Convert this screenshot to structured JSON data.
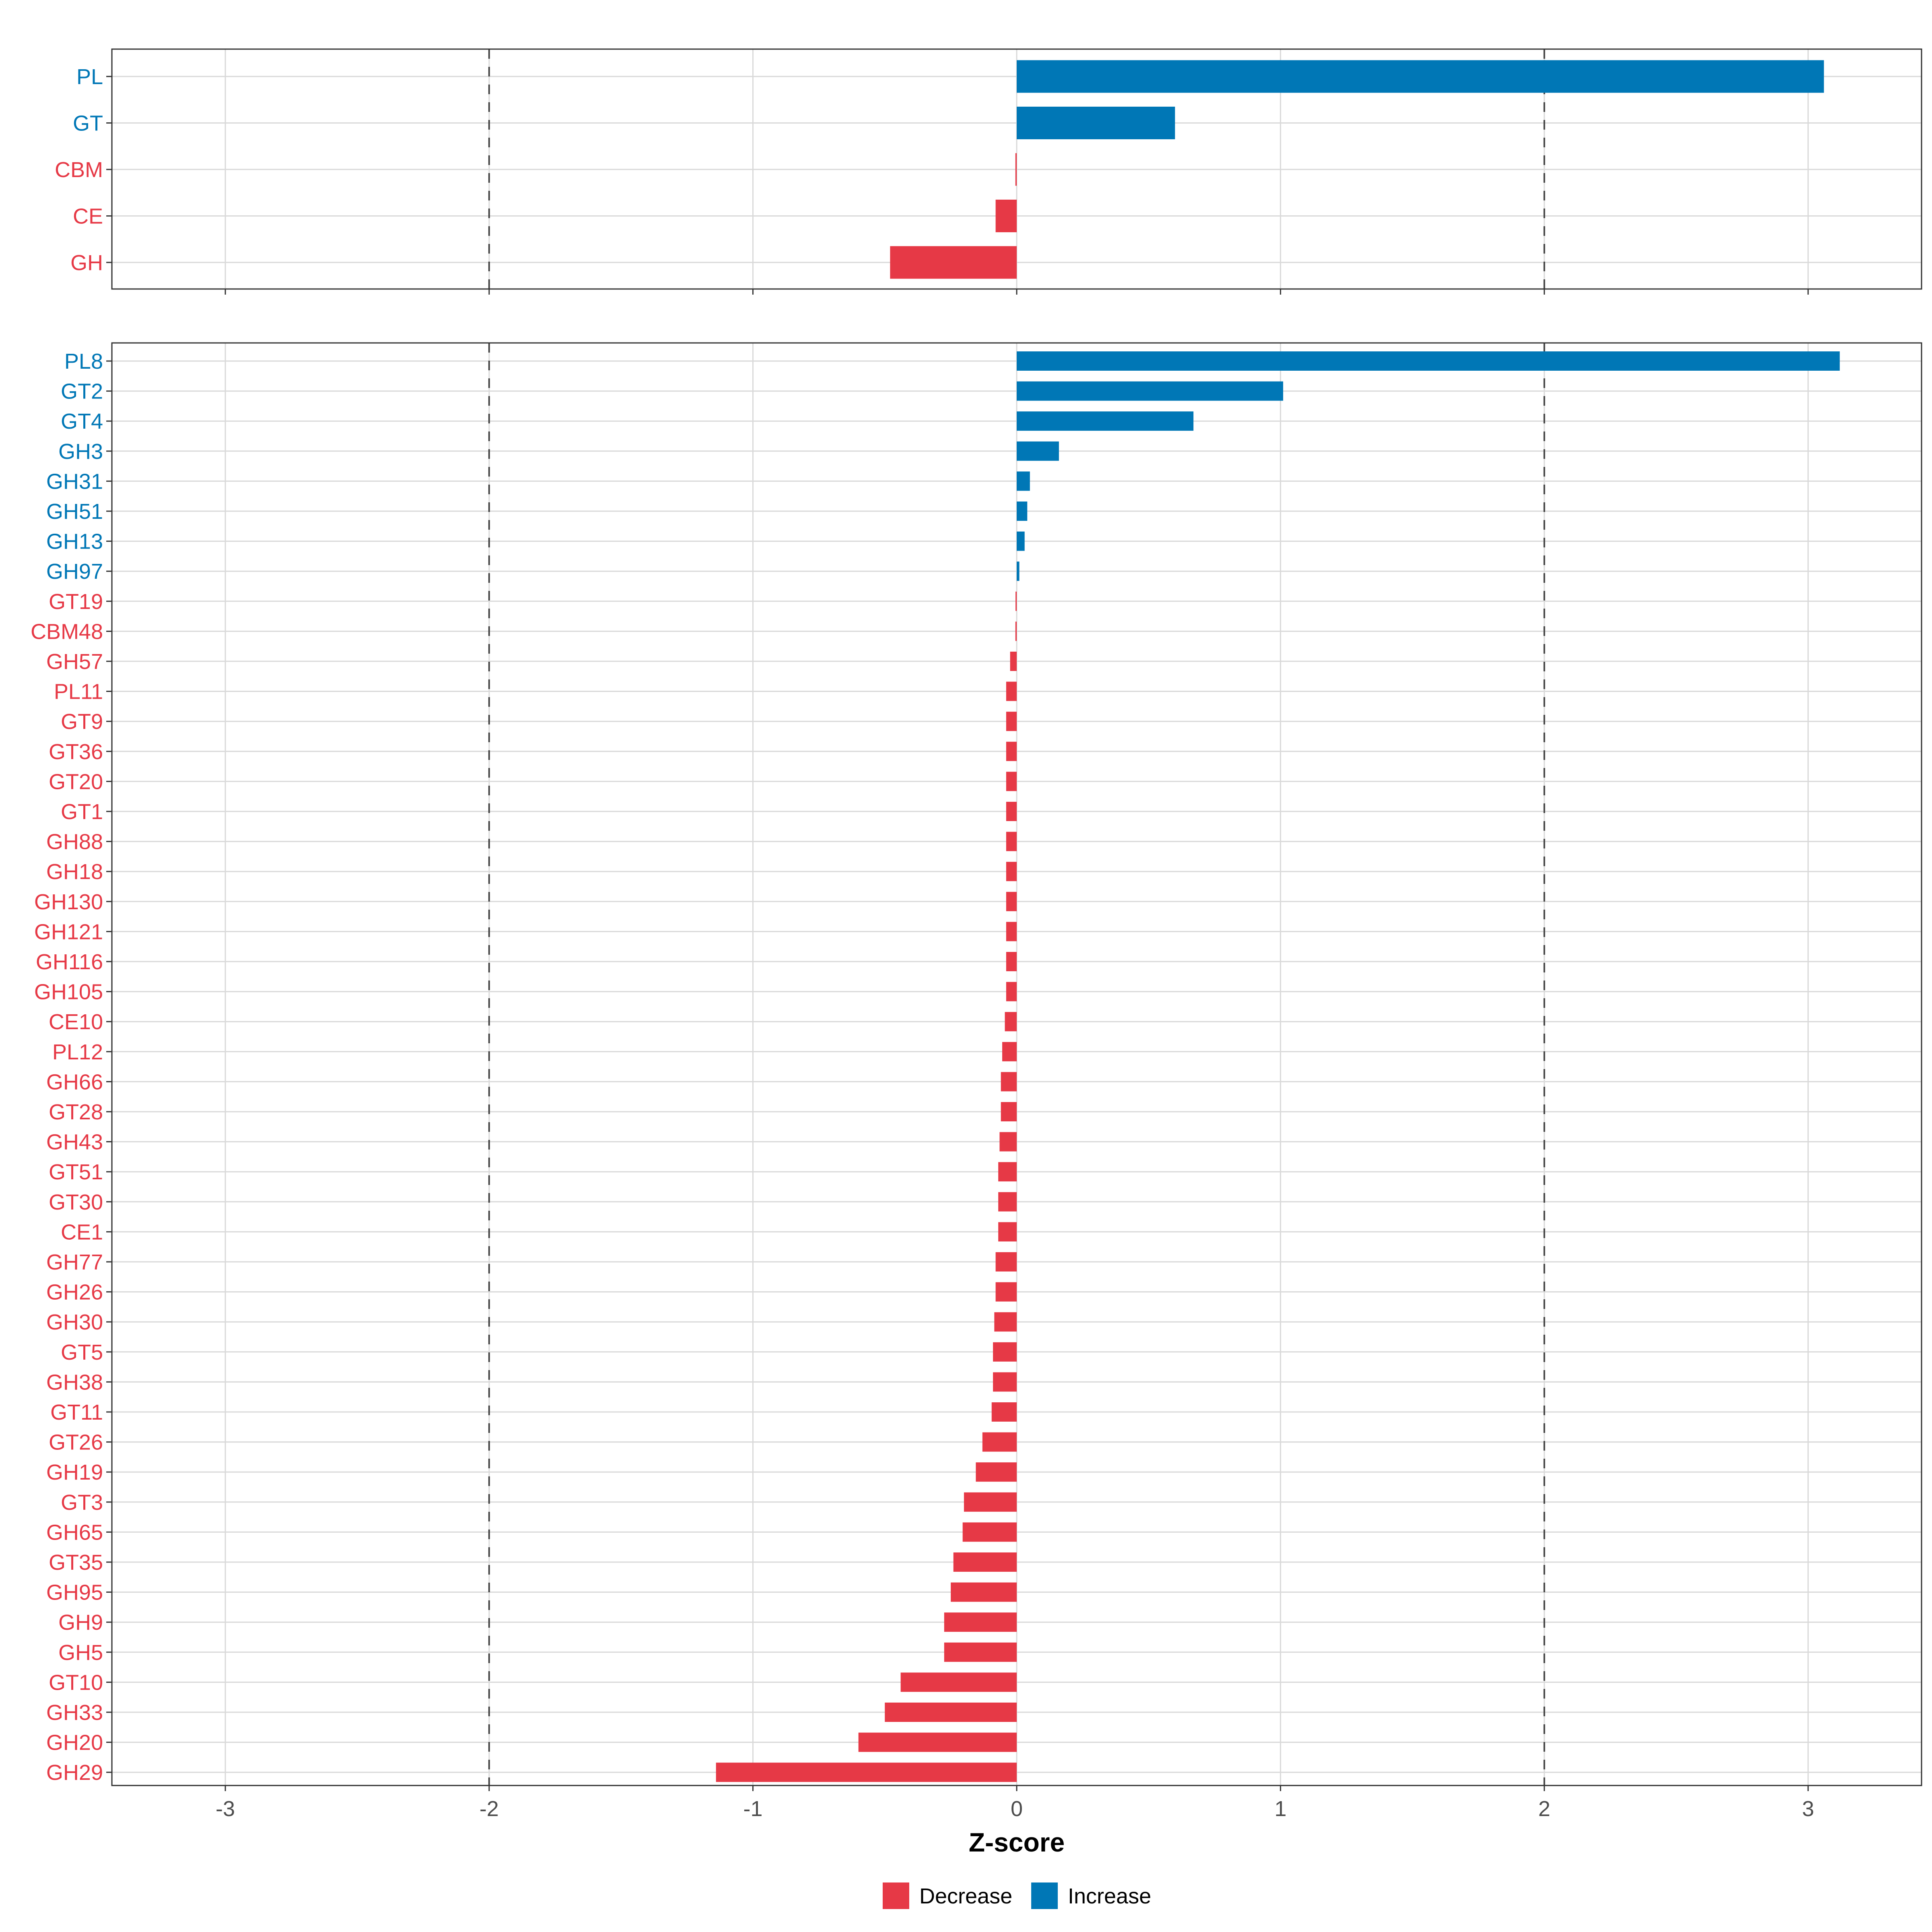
{
  "chart_data": {
    "type": "bar",
    "orientation": "horizontal",
    "xlabel": "Z-score",
    "xlim": [
      -3.43,
      3.43
    ],
    "x_ticks": [
      -3,
      -2,
      -1,
      0,
      1,
      2,
      3
    ],
    "grid": true,
    "reference_lines": [
      -2,
      2
    ],
    "legend": {
      "position": "bottom",
      "entries": [
        {
          "label": "Decrease",
          "color": "#E63946"
        },
        {
          "label": "Increase",
          "color": "#0077B6"
        }
      ]
    },
    "panels": [
      {
        "name": "families",
        "categories": [
          "PL",
          "GT",
          "CBM",
          "CE",
          "GH"
        ],
        "values": [
          3.06,
          0.6,
          -0.005,
          -0.08,
          -0.48
        ]
      },
      {
        "name": "subfamilies",
        "categories": [
          "PL8",
          "GT2",
          "GT4",
          "GH3",
          "GH31",
          "GH51",
          "GH13",
          "GH97",
          "GT19",
          "CBM48",
          "GH57",
          "PL11",
          "GT9",
          "GT36",
          "GT20",
          "GT1",
          "GH88",
          "GH18",
          "GH130",
          "GH121",
          "GH116",
          "GH105",
          "CE10",
          "PL12",
          "GH66",
          "GT28",
          "GH43",
          "GT51",
          "GT30",
          "CE1",
          "GH77",
          "GH26",
          "GH30",
          "GT5",
          "GH38",
          "GT11",
          "GT26",
          "GH19",
          "GT3",
          "GH65",
          "GT35",
          "GH95",
          "GH9",
          "GH5",
          "GT10",
          "GH33",
          "GH20",
          "GH29"
        ],
        "values": [
          3.12,
          1.01,
          0.67,
          0.16,
          0.05,
          0.04,
          0.03,
          0.01,
          -0.002,
          -0.005,
          -0.025,
          -0.04,
          -0.04,
          -0.04,
          -0.04,
          -0.04,
          -0.04,
          -0.04,
          -0.04,
          -0.04,
          -0.04,
          -0.04,
          -0.045,
          -0.055,
          -0.06,
          -0.06,
          -0.065,
          -0.07,
          -0.07,
          -0.07,
          -0.08,
          -0.08,
          -0.085,
          -0.09,
          -0.09,
          -0.095,
          -0.13,
          -0.155,
          -0.2,
          -0.205,
          -0.24,
          -0.25,
          -0.275,
          -0.275,
          -0.44,
          -0.5,
          -0.6,
          -1.14
        ]
      }
    ]
  }
}
